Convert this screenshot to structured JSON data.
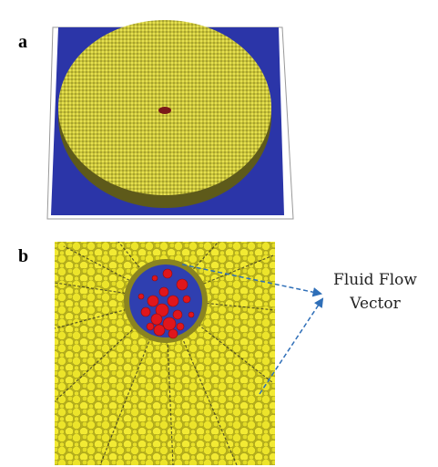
{
  "panels": [
    {
      "label": "a"
    },
    {
      "label": "b"
    }
  ],
  "annotation": {
    "lines": [
      "Fluid Flow",
      "Vector"
    ]
  }
}
